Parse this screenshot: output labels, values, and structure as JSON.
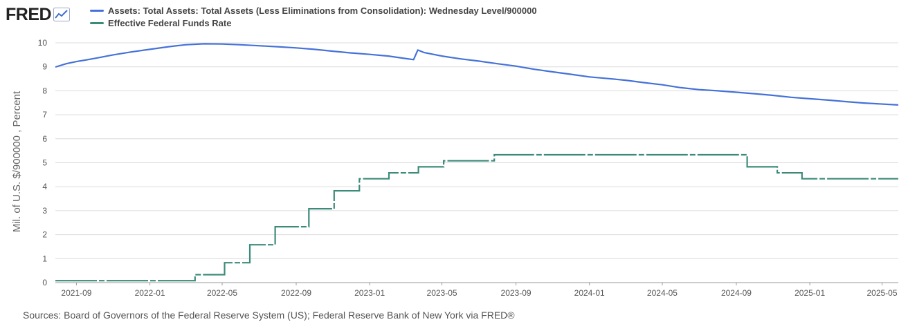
{
  "header": {
    "logo_text": "FRED",
    "logo_icon": "line-chart-icon"
  },
  "footer": {
    "source": "Sources: Board of Governors of the Federal Reserve System (US); Federal Reserve Bank of New York via FRED®"
  },
  "chart_data": {
    "type": "line",
    "title": "",
    "ylabel": "Mil. of U.S. $/900000 , Percent",
    "xlabel": "",
    "ylim": [
      0,
      10
    ],
    "yticks": [
      0,
      1,
      2,
      3,
      4,
      5,
      6,
      7,
      8,
      9,
      10
    ],
    "xlim": [
      "2021-07-28",
      "2025-05-28"
    ],
    "xticks": [
      "2021-09",
      "2022-01",
      "2022-05",
      "2022-09",
      "2023-01",
      "2023-05",
      "2023-09",
      "2024-01",
      "2024-05",
      "2024-09",
      "2025-01",
      "2025-05"
    ],
    "grid": "horizontal",
    "legend_position": "top-left",
    "series": [
      {
        "name": "Assets: Total Assets: Total Assets (Less Eliminations from Consolidation): Wednesday Level/900000",
        "color": "#4572d9",
        "style": "solid",
        "x": [
          "2021-07-28",
          "2021-08-15",
          "2021-09-01",
          "2021-10-01",
          "2021-11-01",
          "2021-12-01",
          "2022-01-01",
          "2022-02-01",
          "2022-03-01",
          "2022-04-01",
          "2022-05-01",
          "2022-06-01",
          "2022-07-01",
          "2022-08-01",
          "2022-09-01",
          "2022-10-01",
          "2022-11-01",
          "2022-12-01",
          "2023-01-01",
          "2023-02-01",
          "2023-03-01",
          "2023-03-15",
          "2023-03-22",
          "2023-04-01",
          "2023-05-01",
          "2023-06-01",
          "2023-07-01",
          "2023-08-01",
          "2023-09-01",
          "2023-10-01",
          "2023-11-01",
          "2023-12-01",
          "2024-01-01",
          "2024-02-01",
          "2024-03-01",
          "2024-04-01",
          "2024-05-01",
          "2024-06-01",
          "2024-07-01",
          "2024-08-01",
          "2024-09-01",
          "2024-10-01",
          "2024-11-01",
          "2024-12-01",
          "2025-01-01",
          "2025-02-01",
          "2025-03-01",
          "2025-04-01",
          "2025-05-28"
        ],
        "y": [
          8.99,
          9.13,
          9.22,
          9.35,
          9.5,
          9.62,
          9.73,
          9.84,
          9.92,
          9.96,
          9.95,
          9.92,
          9.88,
          9.84,
          9.79,
          9.73,
          9.65,
          9.58,
          9.52,
          9.45,
          9.35,
          9.3,
          9.7,
          9.6,
          9.45,
          9.33,
          9.24,
          9.13,
          9.03,
          8.9,
          8.79,
          8.69,
          8.58,
          8.51,
          8.44,
          8.34,
          8.25,
          8.13,
          8.05,
          8.0,
          7.94,
          7.88,
          7.81,
          7.73,
          7.67,
          7.61,
          7.55,
          7.49,
          7.41
        ]
      },
      {
        "name": "Effective Federal Funds Rate",
        "color": "#3c8b7a",
        "style": "step",
        "x": [
          "2021-07-28",
          "2022-03-17",
          "2022-05-05",
          "2022-06-16",
          "2022-07-28",
          "2022-09-22",
          "2022-11-03",
          "2022-12-15",
          "2023-02-02",
          "2023-03-23",
          "2023-05-04",
          "2023-07-27",
          "2024-09-19",
          "2024-11-08",
          "2024-12-19",
          "2025-05-28"
        ],
        "y": [
          0.08,
          0.33,
          0.83,
          1.58,
          2.33,
          3.08,
          3.83,
          4.33,
          4.58,
          4.83,
          5.08,
          5.33,
          4.83,
          4.58,
          4.33,
          4.33
        ]
      }
    ]
  }
}
